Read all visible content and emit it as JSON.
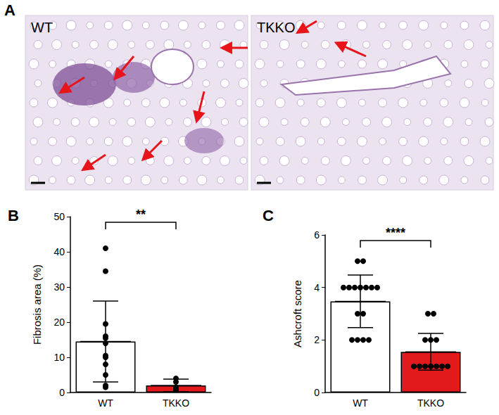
{
  "panel_a": {
    "label": "A",
    "images": [
      {
        "label": "WT"
      },
      {
        "label": "TKKO"
      }
    ]
  },
  "chart_data": [
    {
      "type": "bar",
      "title": "B",
      "ylabel": "Fibrosis area (%)",
      "categories": [
        "WT",
        "TKKO"
      ],
      "values": [
        14.5,
        2.0
      ],
      "error": [
        11.5,
        1.8
      ],
      "points": [
        [
          41,
          34.5,
          19.5,
          16,
          15.5,
          14,
          10.5,
          10,
          8,
          5,
          2,
          1.5
        ],
        [
          4,
          3,
          1.5,
          1,
          0.5,
          0.3
        ]
      ],
      "colors": [
        "#ffffff",
        "#e31a1c"
      ],
      "ylim": [
        0,
        50
      ],
      "yticks": [
        0,
        10,
        20,
        30,
        40,
        50
      ],
      "grid": false,
      "annotations": [
        {
          "text": "**",
          "from": "WT",
          "to": "TKKO"
        }
      ]
    },
    {
      "type": "bar",
      "title": "C",
      "ylabel": "Ashcroft score",
      "categories": [
        "WT",
        "TKKO"
      ],
      "values": [
        3.47,
        1.55
      ],
      "error": [
        1.0,
        0.7
      ],
      "points": [
        [
          5,
          5,
          4,
          4,
          4,
          4,
          4,
          4,
          4,
          3,
          3,
          2,
          2,
          2,
          2
        ],
        [
          3,
          3,
          2,
          2,
          2,
          1,
          1,
          1,
          1,
          1,
          1,
          1
        ]
      ],
      "colors": [
        "#ffffff",
        "#e31a1c"
      ],
      "ylim": [
        0,
        6
      ],
      "yticks": [
        0,
        2,
        4,
        6
      ],
      "grid": false,
      "annotations": [
        {
          "text": "****",
          "from": "WT",
          "to": "TKKO"
        }
      ]
    }
  ]
}
